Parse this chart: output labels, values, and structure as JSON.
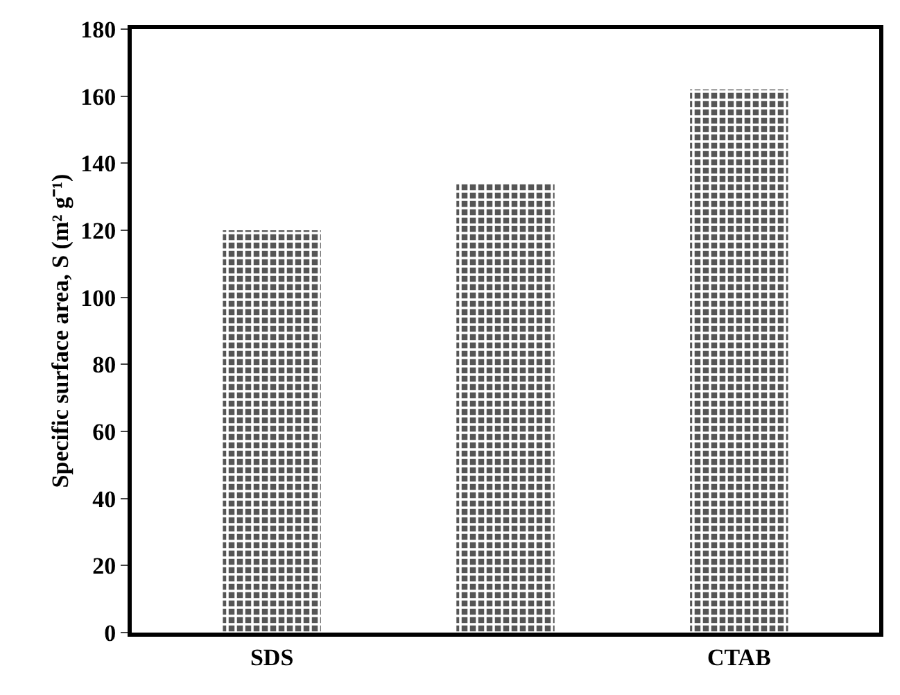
{
  "chart_data": {
    "type": "bar",
    "categories": [
      "SDS",
      null,
      "CTAB"
    ],
    "values": [
      120,
      134,
      162
    ],
    "color": "#555555",
    "ylabel": "Specific surface area, S (m² g⁻¹)",
    "ylim": [
      0,
      180
    ],
    "yticks": [
      0,
      20,
      40,
      60,
      80,
      100,
      120,
      140,
      160,
      180
    ],
    "grid": false
  }
}
